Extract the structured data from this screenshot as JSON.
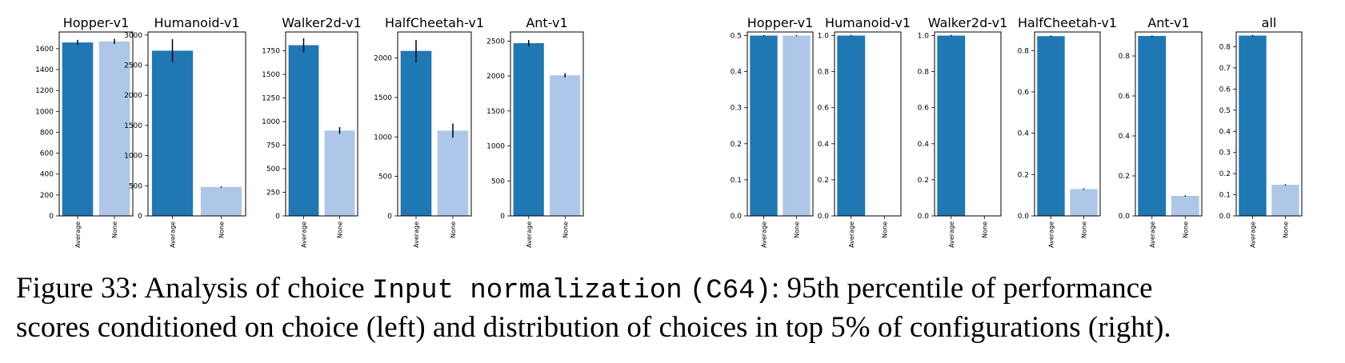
{
  "caption": {
    "prefix": "Figure 33: Analysis of choice ",
    "choice_name": "Input normalization",
    "choice_id": "(C64)",
    "line1_rest": ": 95th percentile of performance",
    "line2": "scores conditioned on choice (left) and distribution of choices in top 5% of configurations (right)."
  },
  "colors": {
    "average": "#1f77b4",
    "none": "#aec7e8",
    "errorbar": "#000000",
    "frame": "#000000"
  },
  "chart_data": [
    {
      "type": "bar",
      "title": "Hopper-v1",
      "categories": [
        "Average",
        "None"
      ],
      "values": [
        1660,
        1670
      ],
      "errors": [
        25,
        25
      ],
      "ylim": [
        0,
        1760
      ],
      "yticks": [
        0,
        200,
        400,
        600,
        800,
        1000,
        1200,
        1400,
        1600
      ],
      "ytick_labels": [
        "0",
        "200",
        "400",
        "600",
        "800",
        "1000",
        "1200",
        "1400",
        "1600"
      ]
    },
    {
      "type": "bar",
      "title": "Humanoid-v1",
      "categories": [
        "Average",
        "None"
      ],
      "values": [
        2740,
        480
      ],
      "errors": [
        190,
        5
      ],
      "ylim": [
        0,
        3050
      ],
      "yticks": [
        0,
        500,
        1000,
        1500,
        2000,
        2500,
        3000
      ],
      "ytick_labels": [
        "0",
        "500",
        "1000",
        "1500",
        "2000",
        "2500",
        "3000"
      ]
    },
    {
      "type": "bar",
      "title": "Walker2d-v1",
      "categories": [
        "Average",
        "None"
      ],
      "values": [
        1810,
        905
      ],
      "errors": [
        75,
        35
      ],
      "ylim": [
        0,
        1950
      ],
      "yticks": [
        0,
        250,
        500,
        750,
        1000,
        1250,
        1500,
        1750
      ],
      "ytick_labels": [
        "0",
        "250",
        "500",
        "750",
        "1000",
        "1250",
        "1500",
        "1750"
      ]
    },
    {
      "type": "bar",
      "title": "HalfCheetah-v1",
      "categories": [
        "Average",
        "None"
      ],
      "values": [
        2090,
        1080
      ],
      "errors": [
        140,
        90
      ],
      "ylim": [
        0,
        2330
      ],
      "yticks": [
        0,
        500,
        1000,
        1500,
        2000
      ],
      "ytick_labels": [
        "0",
        "500",
        "1000",
        "1500",
        "2000"
      ]
    },
    {
      "type": "bar",
      "title": "Ant-v1",
      "categories": [
        "Average",
        "None"
      ],
      "values": [
        2470,
        2010
      ],
      "errors": [
        45,
        30
      ],
      "ylim": [
        0,
        2630
      ],
      "yticks": [
        0,
        500,
        1000,
        1500,
        2000,
        2500
      ],
      "ytick_labels": [
        "0",
        "500",
        "1000",
        "1500",
        "2000",
        "2500"
      ]
    },
    {
      "type": "bar",
      "title": "Hopper-v1",
      "categories": [
        "Average",
        "None"
      ],
      "values": [
        0.5,
        0.5
      ],
      "errors": [
        0,
        0
      ],
      "ylim": [
        0,
        0.51
      ],
      "yticks": [
        0,
        0.1,
        0.2,
        0.3,
        0.4,
        0.5
      ],
      "ytick_labels": [
        "0.0",
        "0.1",
        "0.2",
        "0.3",
        "0.4",
        "0.5"
      ]
    },
    {
      "type": "bar",
      "title": "Humanoid-v1",
      "categories": [
        "Average",
        "None"
      ],
      "values": [
        1.0,
        0.0
      ],
      "errors": [
        0,
        0
      ],
      "ylim": [
        0,
        1.02
      ],
      "yticks": [
        0,
        0.2,
        0.4,
        0.6,
        0.8,
        1.0
      ],
      "ytick_labels": [
        "0.0",
        "0.2",
        "0.4",
        "0.6",
        "0.8",
        "1.0"
      ]
    },
    {
      "type": "bar",
      "title": "Walker2d-v1",
      "categories": [
        "Average",
        "None"
      ],
      "values": [
        1.0,
        0.0
      ],
      "errors": [
        0,
        0
      ],
      "ylim": [
        0,
        1.02
      ],
      "yticks": [
        0,
        0.2,
        0.4,
        0.6,
        0.8,
        1.0
      ],
      "ytick_labels": [
        "0.0",
        "0.2",
        "0.4",
        "0.6",
        "0.8",
        "1.0"
      ]
    },
    {
      "type": "bar",
      "title": "HalfCheetah-v1",
      "categories": [
        "Average",
        "None"
      ],
      "values": [
        0.87,
        0.13
      ],
      "errors": [
        0.003,
        0.003
      ],
      "ylim": [
        0,
        0.89
      ],
      "yticks": [
        0,
        0.2,
        0.4,
        0.6,
        0.8
      ],
      "ytick_labels": [
        "0.0",
        "0.2",
        "0.4",
        "0.6",
        "0.8"
      ]
    },
    {
      "type": "bar",
      "title": "Ant-v1",
      "categories": [
        "Average",
        "None"
      ],
      "values": [
        0.9,
        0.1
      ],
      "errors": [
        0.003,
        0.003
      ],
      "ylim": [
        0,
        0.92
      ],
      "yticks": [
        0,
        0.2,
        0.4,
        0.6,
        0.8
      ],
      "ytick_labels": [
        "0.0",
        "0.2",
        "0.4",
        "0.6",
        "0.8"
      ]
    },
    {
      "type": "bar",
      "title": "all",
      "categories": [
        "Average",
        "None"
      ],
      "values": [
        0.853,
        0.147
      ],
      "errors": [
        0.002,
        0.002
      ],
      "ylim": [
        0,
        0.87
      ],
      "yticks": [
        0,
        0.1,
        0.2,
        0.3,
        0.4,
        0.5,
        0.6,
        0.7,
        0.8
      ],
      "ytick_labels": [
        "0.0",
        "0.1",
        "0.2",
        "0.3",
        "0.4",
        "0.5",
        "0.6",
        "0.7",
        "0.8"
      ]
    }
  ]
}
